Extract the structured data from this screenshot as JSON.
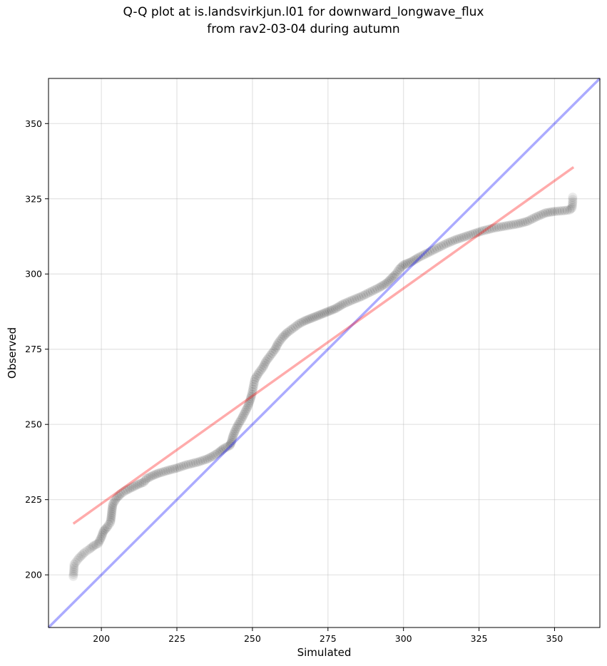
{
  "chart_data": {
    "type": "scatter",
    "title": "Q-Q plot at is.landsvirkjun.l01 for downward_longwave_flux",
    "subtitle": "from rav2-03-04 during autumn",
    "xlabel": "Simulated",
    "ylabel": "Observed",
    "xlim": [
      182.5,
      365
    ],
    "ylim": [
      182.5,
      365
    ],
    "x_ticks": [
      200,
      225,
      250,
      275,
      300,
      325,
      350
    ],
    "y_ticks": [
      200,
      225,
      250,
      275,
      300,
      325,
      350
    ],
    "grid": true,
    "colors": {
      "points": "#000000",
      "identity_line": "#0000ff",
      "fit_line": "#ff0000",
      "grid": "#b0b0b0"
    },
    "qq_curve": [
      [
        190.7,
        199.5
      ],
      [
        190.9,
        201.5
      ],
      [
        191.0,
        203.5
      ],
      [
        192.5,
        205.5
      ],
      [
        194.5,
        207.5
      ],
      [
        196.0,
        208.5
      ],
      [
        197.5,
        209.7
      ],
      [
        199.0,
        210.5
      ],
      [
        200.0,
        212.5
      ],
      [
        200.7,
        214.5
      ],
      [
        202.0,
        216.0
      ],
      [
        203.0,
        217.5
      ],
      [
        203.3,
        219.5
      ],
      [
        203.5,
        221.5
      ],
      [
        203.8,
        223.5
      ],
      [
        205.0,
        225.5
      ],
      [
        206.5,
        227.0
      ],
      [
        208.0,
        228.0
      ],
      [
        210.0,
        229.0
      ],
      [
        212.0,
        230.0
      ],
      [
        214.0,
        230.8
      ],
      [
        215.0,
        232.0
      ],
      [
        217.0,
        233.0
      ],
      [
        219.0,
        233.8
      ],
      [
        222.0,
        234.7
      ],
      [
        225.0,
        235.5
      ],
      [
        228.0,
        236.5
      ],
      [
        232.0,
        237.5
      ],
      [
        235.0,
        238.5
      ],
      [
        237.0,
        239.5
      ],
      [
        239.0,
        240.8
      ],
      [
        240.5,
        242.0
      ],
      [
        242.5,
        243.0
      ],
      [
        243.0,
        244.0
      ],
      [
        243.5,
        246.0
      ],
      [
        244.3,
        248.0
      ],
      [
        245.3,
        250.0
      ],
      [
        246.5,
        252.0
      ],
      [
        247.5,
        254.0
      ],
      [
        248.5,
        256.0
      ],
      [
        249.2,
        258.0
      ],
      [
        249.8,
        260.0
      ],
      [
        250.3,
        262.5
      ],
      [
        250.8,
        265.0
      ],
      [
        252.0,
        267.0
      ],
      [
        253.5,
        269.0
      ],
      [
        254.5,
        271.0
      ],
      [
        256.0,
        273.0
      ],
      [
        257.5,
        275.0
      ],
      [
        258.5,
        277.0
      ],
      [
        260.0,
        279.0
      ],
      [
        261.5,
        280.5
      ],
      [
        263.5,
        282.0
      ],
      [
        265.5,
        283.5
      ],
      [
        267.5,
        284.5
      ],
      [
        270.0,
        285.5
      ],
      [
        272.5,
        286.5
      ],
      [
        275.0,
        287.5
      ],
      [
        277.5,
        288.5
      ],
      [
        280.0,
        290.0
      ],
      [
        283.0,
        291.3
      ],
      [
        286.0,
        292.5
      ],
      [
        289.0,
        294.0
      ],
      [
        292.0,
        295.5
      ],
      [
        294.5,
        297.0
      ],
      [
        296.0,
        298.5
      ],
      [
        297.5,
        300.0
      ],
      [
        298.5,
        301.5
      ],
      [
        300.0,
        303.0
      ],
      [
        302.5,
        304.0
      ],
      [
        305.0,
        305.5
      ],
      [
        308.0,
        307.0
      ],
      [
        311.0,
        308.5
      ],
      [
        314.0,
        310.0
      ],
      [
        317.0,
        311.3
      ],
      [
        320.0,
        312.3
      ],
      [
        323.0,
        313.3
      ],
      [
        326.0,
        314.3
      ],
      [
        330.0,
        315.3
      ],
      [
        334.0,
        316.0
      ],
      [
        338.0,
        316.7
      ],
      [
        341.0,
        317.5
      ],
      [
        344.0,
        319.0
      ],
      [
        347.0,
        320.3
      ],
      [
        350.0,
        320.8
      ],
      [
        352.5,
        321.0
      ],
      [
        355.0,
        321.3
      ],
      [
        355.8,
        322.0
      ],
      [
        356.0,
        324.0
      ],
      [
        356.0,
        325.5
      ]
    ],
    "identity_line": {
      "x": [
        182.5,
        365
      ],
      "y": [
        182.5,
        365
      ]
    },
    "fit_line": {
      "x": [
        190.7,
        356.3
      ],
      "y": [
        217.0,
        335.5
      ]
    }
  }
}
